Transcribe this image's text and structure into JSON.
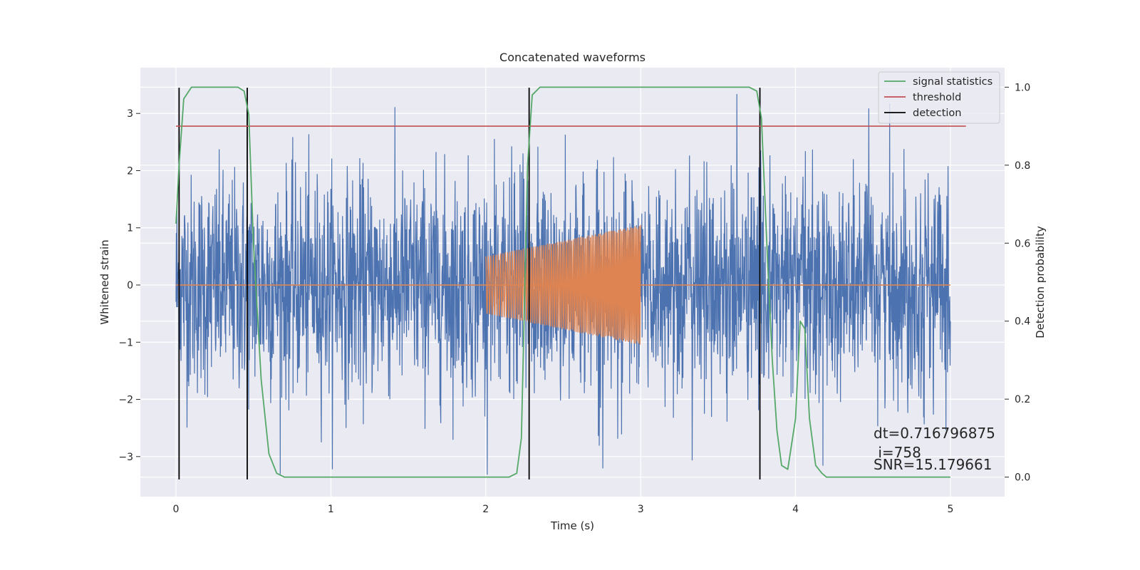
{
  "chart_data": {
    "type": "line",
    "title": "Concatenated waveforms",
    "xlabel": "Time (s)",
    "ylabel_left": "Whitened strain",
    "ylabel_right": "Detection probability",
    "xlim": [
      -0.23,
      5.35
    ],
    "ylim_left": [
      -3.7,
      3.8
    ],
    "ylim_right": [
      -0.05,
      1.05
    ],
    "x_ticks": [
      0,
      1,
      2,
      3,
      4,
      5
    ],
    "y_ticks_left": [
      -3,
      -2,
      -1,
      0,
      1,
      2,
      3
    ],
    "y_ticks_right": [
      0.0,
      0.2,
      0.4,
      0.6,
      0.8,
      1.0
    ],
    "x_tick_labels": [
      "0",
      "1",
      "2",
      "3",
      "4",
      "5"
    ],
    "y_tick_labels_left": [
      "−3",
      "−2",
      "−1",
      "0",
      "1",
      "2",
      "3"
    ],
    "y_tick_labels_right": [
      "0.0",
      "0.2",
      "0.4",
      "0.6",
      "0.8",
      "1.0"
    ],
    "grid": true,
    "legend_position": "top-right",
    "series": [
      {
        "name": "",
        "axis": "left",
        "color": "#4c72b0",
        "description_values": {
          "x_range": [
            0,
            5
          ],
          "amplitude_range": [
            -3.4,
            3.45
          ]
        }
      },
      {
        "name": "",
        "axis": "left",
        "color": "#dd8452",
        "chirp": {
          "x_start": 2.0,
          "x_end": 3.0,
          "amp_start": 0.5,
          "amp_end": 1.05
        },
        "baseline": 0
      },
      {
        "name": "signal statistics",
        "axis": "right",
        "color": "#55a868",
        "x": [
          0.0,
          0.02,
          0.05,
          0.1,
          0.2,
          0.4,
          0.44,
          0.47,
          0.5,
          0.55,
          0.6,
          0.65,
          0.7,
          1.0,
          1.5,
          2.0,
          2.15,
          2.2,
          2.23,
          2.27,
          2.3,
          2.35,
          2.5,
          3.0,
          3.5,
          3.7,
          3.75,
          3.78,
          3.82,
          3.85,
          3.88,
          3.91,
          3.95,
          4.0,
          4.03,
          4.06,
          4.09,
          4.13,
          4.17,
          4.2,
          4.5,
          5.0
        ],
        "y": [
          0.65,
          0.8,
          0.97,
          1.0,
          1.0,
          1.0,
          0.99,
          0.93,
          0.6,
          0.25,
          0.06,
          0.01,
          0.0,
          0.0,
          0.0,
          0.0,
          0.0,
          0.01,
          0.1,
          0.8,
          0.98,
          1.0,
          1.0,
          1.0,
          1.0,
          1.0,
          0.99,
          0.92,
          0.55,
          0.3,
          0.12,
          0.03,
          0.02,
          0.15,
          0.4,
          0.38,
          0.15,
          0.03,
          0.01,
          0.0,
          0.0,
          0.0
        ]
      },
      {
        "name": "threshold",
        "axis": "right",
        "color": "#c44e52",
        "x": [
          0.0,
          5.1
        ],
        "y": [
          0.9,
          0.9
        ]
      },
      {
        "name": "detection",
        "axis": "left",
        "color": "#000000",
        "vertical_lines_x": [
          0.02,
          0.46,
          2.28,
          3.77
        ],
        "y_span": [
          -3.4,
          3.45
        ]
      }
    ],
    "annotations": [
      "dt=0.716796875",
      " i=758",
      "SNR=15.179661"
    ]
  }
}
